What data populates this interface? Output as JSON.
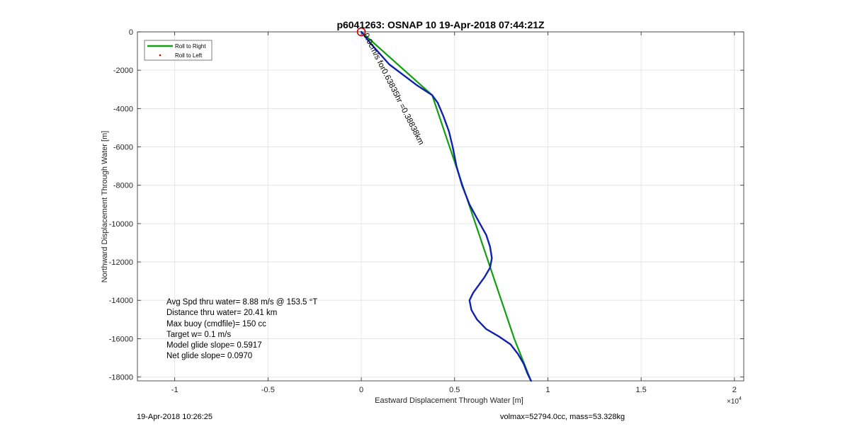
{
  "chart_data": {
    "type": "line",
    "title": "p6041263: OSNAP 10 19-Apr-2018 07:44:21Z",
    "xlabel": "Eastward Displacement Through Water [m]",
    "ylabel": "Northward Displacement Through Water [m]",
    "x_exponent_label": "×10",
    "x_exponent_power": "4",
    "xlim": [
      -1.2,
      2.05
    ],
    "ylim": [
      -18200,
      0
    ],
    "x_scale_factor": 10000,
    "x_ticks": [
      -1,
      -0.5,
      0,
      0.5,
      1,
      1.5,
      2
    ],
    "x_tick_labels": [
      "-1",
      "-0.5",
      "0",
      "0.5",
      "1",
      "1.5",
      "2"
    ],
    "y_ticks": [
      0,
      -2000,
      -4000,
      -6000,
      -8000,
      -10000,
      -12000,
      -14000,
      -16000,
      -18000
    ],
    "y_tick_labels": [
      "0",
      "-2000",
      "-4000",
      "-6000",
      "-8000",
      "-10000",
      "-12000",
      "-14000",
      "-16000",
      "-18000"
    ],
    "grid": true,
    "legend_position": "top-left",
    "legend": [
      {
        "label": "Roll to Right",
        "color": "#10a010",
        "marker": "line"
      },
      {
        "label": "Roll to Left",
        "color": "#cc0000",
        "marker": "dot"
      }
    ],
    "series": [
      {
        "name": "Roll to Right",
        "color": "#10a010",
        "x": [
          0,
          0.38,
          0.82,
          0.91
        ],
        "y": [
          0,
          -3300,
          -16000,
          -18200
        ]
      },
      {
        "color": "#1020b0",
        "x": [
          0,
          0.05,
          0.15,
          0.3,
          0.38,
          0.41,
          0.44,
          0.47,
          0.49,
          0.51,
          0.54,
          0.58,
          0.63,
          0.67,
          0.69,
          0.7,
          0.69,
          0.66,
          0.63,
          0.6,
          0.58,
          0.59,
          0.62,
          0.67,
          0.74,
          0.8,
          0.84,
          0.87,
          0.89,
          0.91
        ],
        "y": [
          0,
          -600,
          -1700,
          -2800,
          -3300,
          -3700,
          -4400,
          -5200,
          -6000,
          -7000,
          -8000,
          -9000,
          -9900,
          -10600,
          -11200,
          -11800,
          -12300,
          -12800,
          -13200,
          -13600,
          -14000,
          -14500,
          -15000,
          -15500,
          -15900,
          -16300,
          -16800,
          -17300,
          -17800,
          -18200
        ]
      }
    ],
    "annotations": [
      {
        "text": "0.0cm/s for0.63835hr =0.38838km",
        "x": 0.01,
        "y": -150,
        "rotation_deg": 63
      }
    ],
    "start_marker": {
      "x": 0,
      "y": 0,
      "color": "#cc0000"
    }
  },
  "stats": {
    "avg_speed": "Avg Spd thru water=  8.88 m/s @ 153.5 °T",
    "distance": "Distance thru water= 20.41 km",
    "max_buoy": "Max buoy (cmdfile)= 150 cc",
    "target_w": "Target w= 0.1 m/s",
    "model_glide": "Model glide slope= 0.5917",
    "net_glide": "Net glide slope= 0.0970"
  },
  "footer": {
    "timestamp": "19-Apr-2018 10:26:25",
    "volmax": "volmax=52794.0cc, mass=53.328kg"
  }
}
